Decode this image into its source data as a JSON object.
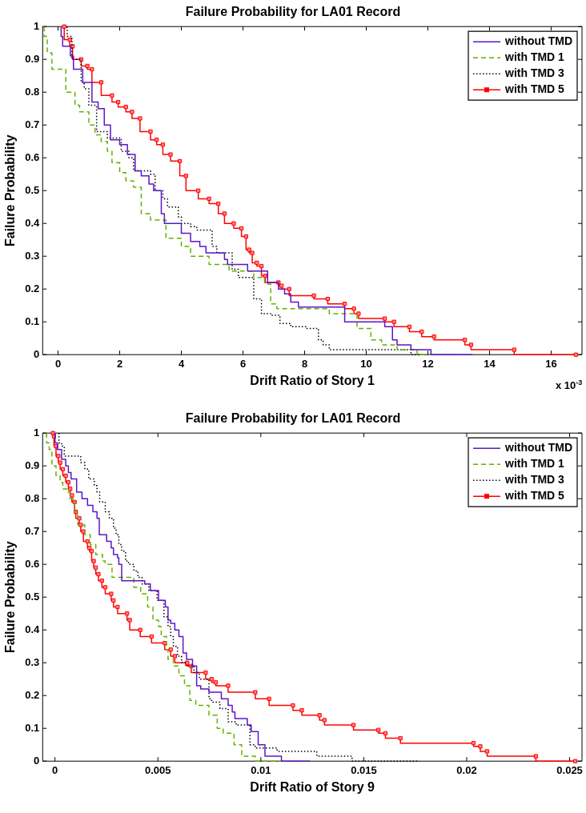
{
  "chart_data": [
    {
      "type": "step",
      "title": "Failure Probability for LA01 Record",
      "xlabel": "Drift Ratio of Story 1",
      "ylabel": "Failure Probability",
      "annotations": [
        "x 10$^{-3}$"
      ],
      "xlim": [
        -0.5,
        17
      ],
      "xticks": [
        0,
        2,
        4,
        6,
        8,
        10,
        12,
        14,
        16
      ],
      "ylim": [
        0,
        1
      ],
      "yticks": [
        0,
        0.1,
        0.2,
        0.3,
        0.4,
        0.5,
        0.6,
        0.7,
        0.8,
        0.9,
        1
      ],
      "legend": "top right",
      "series": [
        {
          "name": "without TMD",
          "color": "#5b16c8",
          "line_style": "solid",
          "marker": "none",
          "x": [
            0.1,
            0.15,
            0.4,
            0.5,
            0.8,
            1.1,
            1.3,
            1.5,
            1.7,
            2.0,
            2.25,
            2.5,
            2.7,
            2.95,
            3.1,
            3.35,
            3.45,
            4.0,
            4.3,
            4.6,
            4.8,
            5.4,
            5.5,
            6.15,
            6.8,
            7.15,
            7.35,
            7.55,
            7.8,
            9.3,
            10.6,
            10.85,
            11.0,
            11.45,
            12.1,
            13.45
          ],
          "values": [
            1.0,
            0.97,
            0.94,
            0.91,
            0.87,
            0.83,
            0.77,
            0.75,
            0.7,
            0.655,
            0.64,
            0.61,
            0.56,
            0.545,
            0.52,
            0.5,
            0.43,
            0.4,
            0.37,
            0.345,
            0.33,
            0.31,
            0.29,
            0.275,
            0.255,
            0.22,
            0.2,
            0.185,
            0.16,
            0.145,
            0.1,
            0.085,
            0.045,
            0.03,
            0.015,
            0
          ]
        },
        {
          "name": "with TMD 1",
          "color": "#66b000",
          "line_style": "dashed",
          "marker": "none",
          "x": [
            -0.45,
            -0.35,
            -0.2,
            0.25,
            0.55,
            0.7,
            1.0,
            1.2,
            1.4,
            1.6,
            1.75,
            2.0,
            2.2,
            2.45,
            2.7,
            3.0,
            3.5,
            4.0,
            4.3,
            4.9,
            5.55,
            6.35,
            6.7,
            6.9,
            7.1,
            8.8,
            9.7,
            10.15,
            10.5,
            11.0,
            11.65,
            12.95
          ],
          "values": [
            1.0,
            0.97,
            0.92,
            0.87,
            0.8,
            0.76,
            0.74,
            0.7,
            0.67,
            0.65,
            0.62,
            0.585,
            0.555,
            0.53,
            0.51,
            0.43,
            0.41,
            0.355,
            0.33,
            0.3,
            0.275,
            0.255,
            0.235,
            0.215,
            0.155,
            0.14,
            0.125,
            0.08,
            0.045,
            0.03,
            0.015,
            0
          ]
        },
        {
          "name": "with TMD 3",
          "color": "#000000",
          "line_style": "dotted",
          "marker": "none",
          "x": [
            0.3,
            0.45,
            0.75,
            0.85,
            1.0,
            1.25,
            1.6,
            2.05,
            2.3,
            2.45,
            3.0,
            3.15,
            3.4,
            3.55,
            3.9,
            4.0,
            4.3,
            4.5,
            5.0,
            5.15,
            5.65,
            5.85,
            6.35,
            6.6,
            6.9,
            7.2,
            7.55,
            8.05,
            8.45,
            8.6,
            8.8,
            11.45,
            11.9
          ],
          "values": [
            1.0,
            0.97,
            0.9,
            0.83,
            0.81,
            0.76,
            0.68,
            0.66,
            0.62,
            0.6,
            0.56,
            0.55,
            0.5,
            0.475,
            0.45,
            0.42,
            0.4,
            0.39,
            0.38,
            0.33,
            0.31,
            0.26,
            0.235,
            0.17,
            0.125,
            0.12,
            0.095,
            0.085,
            0.08,
            0.045,
            0.03,
            0.015,
            0
          ]
        },
        {
          "name": "with TMD 5",
          "color": "#ff0000",
          "line_style": "solid",
          "marker": "square",
          "x": [
            0.2,
            0.38,
            0.47,
            0.75,
            0.95,
            1.1,
            1.4,
            1.75,
            1.95,
            2.2,
            2.4,
            2.66,
            3.0,
            3.2,
            3.4,
            3.65,
            3.95,
            4.15,
            4.55,
            4.9,
            5.2,
            5.4,
            5.7,
            5.95,
            6.1,
            6.2,
            6.3,
            6.45,
            6.6,
            6.72,
            7.15,
            7.25,
            7.5,
            8.3,
            8.75,
            9.3,
            9.6,
            9.75,
            10.6,
            10.9,
            11.4,
            11.8,
            12.2,
            13.2,
            13.4,
            14.8,
            16.8
          ],
          "values": [
            1.0,
            0.96,
            0.94,
            0.9,
            0.88,
            0.87,
            0.83,
            0.79,
            0.77,
            0.755,
            0.74,
            0.72,
            0.68,
            0.655,
            0.64,
            0.61,
            0.59,
            0.545,
            0.5,
            0.475,
            0.46,
            0.43,
            0.4,
            0.385,
            0.36,
            0.32,
            0.31,
            0.28,
            0.27,
            0.24,
            0.22,
            0.21,
            0.2,
            0.18,
            0.17,
            0.155,
            0.14,
            0.125,
            0.11,
            0.1,
            0.085,
            0.07,
            0.055,
            0.045,
            0.03,
            0.015,
            0.0
          ]
        }
      ]
    },
    {
      "type": "step",
      "title": "Failure Probability for LA01 Record",
      "xlabel": "Drift Ratio of Story 9",
      "ylabel": "Failure Probability",
      "xlim": [
        -0.0006,
        0.0256
      ],
      "xticks": [
        0,
        0.005,
        0.01,
        0.015,
        0.02,
        0.025
      ],
      "ylim": [
        0,
        1
      ],
      "yticks": [
        0,
        0.1,
        0.2,
        0.3,
        0.4,
        0.5,
        0.6,
        0.7,
        0.8,
        0.9,
        1
      ],
      "legend": "top right",
      "series": [
        {
          "name": "without TMD",
          "color": "#5b16c8",
          "line_style": "solid",
          "marker": "none",
          "x": [
            0.0,
            0.00012,
            0.00032,
            0.00052,
            0.00065,
            0.00078,
            0.00105,
            0.00131,
            0.00158,
            0.00184,
            0.00204,
            0.00215,
            0.00251,
            0.00273,
            0.00284,
            0.00304,
            0.0031,
            0.00324,
            0.00436,
            0.00463,
            0.00503,
            0.00536,
            0.00549,
            0.00562,
            0.00582,
            0.00602,
            0.00622,
            0.00639,
            0.00668,
            0.00688,
            0.00708,
            0.00748,
            0.00808,
            0.00841,
            0.00861,
            0.00874,
            0.00934,
            0.00953,
            0.00987,
            0.0102,
            0.011,
            0.01239
          ],
          "values": [
            1.0,
            0.97,
            0.95,
            0.92,
            0.9,
            0.88,
            0.86,
            0.82,
            0.8,
            0.78,
            0.76,
            0.74,
            0.69,
            0.67,
            0.65,
            0.63,
            0.62,
            0.6,
            0.55,
            0.54,
            0.52,
            0.49,
            0.47,
            0.43,
            0.42,
            0.4,
            0.38,
            0.33,
            0.31,
            0.29,
            0.23,
            0.22,
            0.21,
            0.19,
            0.17,
            0.15,
            0.13,
            0.11,
            0.09,
            0.05,
            0.015,
            0
          ]
        },
        {
          "name": "with TMD 1",
          "color": "#66b000",
          "line_style": "dashed",
          "marker": "none",
          "x": [
            -0.00041,
            -0.00028,
            -0.00015,
            5e-05,
            0.00025,
            0.00038,
            0.00058,
            0.00072,
            0.00095,
            0.00111,
            0.00145,
            0.00171,
            0.00198,
            0.00231,
            0.00244,
            0.00277,
            0.00383,
            0.00416,
            0.0045,
            0.00476,
            0.00503,
            0.00516,
            0.00542,
            0.00549,
            0.00575,
            0.00602,
            0.00629,
            0.00655,
            0.00684,
            0.00748,
            0.00788,
            0.00817,
            0.0087,
            0.00907,
            0.00973,
            0.0119
          ],
          "values": [
            1.0,
            0.97,
            0.95,
            0.9,
            0.87,
            0.85,
            0.83,
            0.82,
            0.8,
            0.76,
            0.72,
            0.69,
            0.66,
            0.63,
            0.61,
            0.6,
            0.56,
            0.53,
            0.51,
            0.47,
            0.43,
            0.41,
            0.38,
            0.34,
            0.31,
            0.29,
            0.26,
            0.23,
            0.185,
            0.17,
            0.14,
            0.1,
            0.085,
            0.05,
            0.015,
            0
          ]
        },
        {
          "name": "with TMD 3",
          "color": "#000000",
          "line_style": "dotted",
          "marker": "none",
          "x": [
            0.00019,
            0.00032,
            0.00045,
            0.00125,
            0.00145,
            0.00164,
            0.00191,
            0.00204,
            0.00217,
            0.00244,
            0.00264,
            0.00284,
            0.00297,
            0.0031,
            0.00324,
            0.00343,
            0.00357,
            0.00383,
            0.00403,
            0.00423,
            0.00456,
            0.00496,
            0.00529,
            0.00549,
            0.00562,
            0.00575,
            0.00595,
            0.00615,
            0.00635,
            0.00675,
            0.00701,
            0.00748,
            0.00761,
            0.00801,
            0.00841,
            0.0088,
            0.00947,
            0.00973,
            0.01079,
            0.01272,
            0.01443,
            0.0177
          ],
          "values": [
            1.0,
            0.97,
            0.96,
            0.93,
            0.91,
            0.89,
            0.86,
            0.84,
            0.82,
            0.79,
            0.76,
            0.74,
            0.71,
            0.69,
            0.66,
            0.64,
            0.61,
            0.6,
            0.58,
            0.56,
            0.54,
            0.52,
            0.49,
            0.44,
            0.41,
            0.38,
            0.35,
            0.32,
            0.3,
            0.29,
            0.27,
            0.25,
            0.19,
            0.18,
            0.16,
            0.12,
            0.11,
            0.05,
            0.04,
            0.03,
            0.015,
            0
          ]
        },
        {
          "name": "with TMD 5",
          "color": "#ff0000",
          "line_style": "solid",
          "marker": "square",
          "x": [
            -0.0001,
            -5e-05,
            5e-05,
            0.00016,
            0.00025,
            0.00038,
            0.00052,
            0.00065,
            0.00074,
            0.00082,
            0.00095,
            0.00101,
            0.00118,
            0.00125,
            0.00138,
            0.00158,
            0.00167,
            0.00178,
            0.00188,
            0.00198,
            0.00211,
            0.00228,
            0.00244,
            0.00273,
            0.00284,
            0.00304,
            0.0035,
            0.00363,
            0.00414,
            0.00469,
            0.00533,
            0.00562,
            0.00582,
            0.00642,
            0.00662,
            0.00732,
            0.00761,
            0.00781,
            0.00841,
            0.00973,
            0.0104,
            0.01156,
            0.01199,
            0.01285,
            0.01309,
            0.0145,
            0.01571,
            0.01605,
            0.01678,
            0.02033,
            0.02066,
            0.02099,
            0.02336,
            0.02527
          ],
          "values": [
            1.0,
            0.99,
            0.96,
            0.93,
            0.91,
            0.89,
            0.87,
            0.85,
            0.83,
            0.81,
            0.79,
            0.76,
            0.74,
            0.72,
            0.7,
            0.67,
            0.65,
            0.64,
            0.61,
            0.59,
            0.57,
            0.55,
            0.53,
            0.51,
            0.49,
            0.47,
            0.45,
            0.43,
            0.4,
            0.38,
            0.36,
            0.34,
            0.32,
            0.3,
            0.29,
            0.27,
            0.25,
            0.24,
            0.23,
            0.21,
            0.19,
            0.17,
            0.155,
            0.14,
            0.125,
            0.11,
            0.095,
            0.085,
            0.07,
            0.055,
            0.045,
            0.03,
            0.015,
            0
          ]
        }
      ]
    }
  ]
}
